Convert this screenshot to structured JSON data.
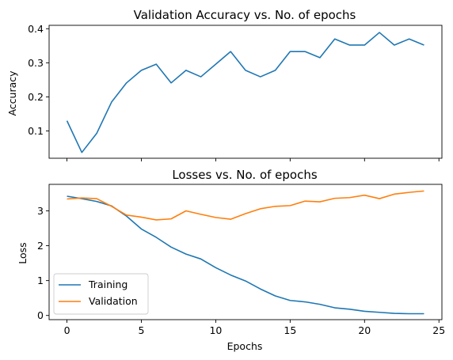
{
  "chart_data": [
    {
      "type": "line",
      "title": "Validation Accuracy vs. No. of epochs",
      "xlabel": "",
      "ylabel": "Accuracy",
      "xlim": [
        -1.2,
        25.2
      ],
      "ylim": [
        0.02,
        0.41
      ],
      "xticks": [
        0,
        5,
        10,
        15,
        20,
        25
      ],
      "yticks": [
        0.1,
        0.2,
        0.3,
        0.4
      ],
      "ytick_labels": [
        "0.1",
        "0.2",
        "0.3",
        "0.4"
      ],
      "show_xtick_labels": false,
      "grid": false,
      "x": [
        0,
        1,
        2,
        3,
        4,
        5,
        6,
        7,
        8,
        9,
        10,
        11,
        12,
        13,
        14,
        15,
        16,
        17,
        18,
        19,
        20,
        21,
        22,
        23,
        24
      ],
      "series": [
        {
          "color": "#1f77b4",
          "values": [
            0.13,
            0.037,
            0.093,
            0.185,
            0.241,
            0.278,
            0.296,
            0.241,
            0.278,
            0.259,
            0.296,
            0.333,
            0.278,
            0.259,
            0.278,
            0.333,
            0.333,
            0.315,
            0.37,
            0.352,
            0.352,
            0.389,
            0.352,
            0.37,
            0.352
          ]
        }
      ]
    },
    {
      "type": "line",
      "title": "Losses vs. No. of epochs",
      "xlabel": "Epochs",
      "ylabel": "Loss",
      "xlim": [
        -1.2,
        25.2
      ],
      "ylim": [
        -0.12,
        3.76
      ],
      "xticks": [
        0,
        5,
        10,
        15,
        20,
        25
      ],
      "xtick_labels": [
        "0",
        "5",
        "10",
        "15",
        "20",
        "25"
      ],
      "yticks": [
        0,
        1,
        2,
        3
      ],
      "ytick_labels": [
        "0",
        "1",
        "2",
        "3"
      ],
      "grid": false,
      "legend": "lower-left",
      "x": [
        0,
        1,
        2,
        3,
        4,
        5,
        6,
        7,
        8,
        9,
        10,
        11,
        12,
        13,
        14,
        15,
        16,
        17,
        18,
        19,
        20,
        21,
        22,
        23,
        24
      ],
      "series": [
        {
          "name": "Training",
          "color": "#1f77b4",
          "values": [
            3.42,
            3.35,
            3.27,
            3.14,
            2.85,
            2.48,
            2.24,
            1.96,
            1.76,
            1.62,
            1.37,
            1.16,
            0.99,
            0.76,
            0.56,
            0.43,
            0.39,
            0.32,
            0.22,
            0.18,
            0.12,
            0.09,
            0.06,
            0.05,
            0.05
          ]
        },
        {
          "name": "Validation",
          "color": "#ff7f0e",
          "values": [
            3.34,
            3.37,
            3.35,
            3.13,
            2.88,
            2.82,
            2.74,
            2.77,
            3.0,
            2.9,
            2.81,
            2.76,
            2.92,
            3.06,
            3.13,
            3.15,
            3.28,
            3.26,
            3.36,
            3.38,
            3.45,
            3.35,
            3.48,
            3.53,
            3.57
          ]
        }
      ]
    }
  ]
}
